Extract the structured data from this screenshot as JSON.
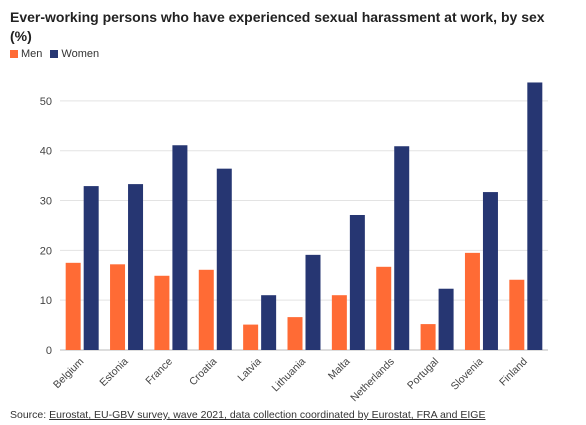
{
  "title": "Ever-working persons who have experienced sexual harassment at work, by sex (%)",
  "source": {
    "prefix": "Source: ",
    "link_text": "Eurostat, EU-GBV survey, wave 2021, data collection coordinated by Eurostat, FRA and EIGE"
  },
  "colors": {
    "men": "#ff6b35",
    "women": "#263672"
  },
  "chart_data": {
    "type": "bar",
    "title": "Ever-working persons who have experienced sexual harassment at work, by sex (%)",
    "categories": [
      "Belgium",
      "Estonia",
      "France",
      "Croatia",
      "Latvia",
      "Lithuania",
      "Malta",
      "Netherlands",
      "Portugal",
      "Slovenia",
      "Finland"
    ],
    "series": [
      {
        "name": "Men",
        "values": [
          17.5,
          17.2,
          14.9,
          16.1,
          5.1,
          6.6,
          11.0,
          16.7,
          5.2,
          19.5,
          14.1
        ]
      },
      {
        "name": "Women",
        "values": [
          32.9,
          33.3,
          41.1,
          36.4,
          11.0,
          19.1,
          27.1,
          40.9,
          12.3,
          31.7,
          53.7
        ]
      }
    ],
    "yticks": [
      0,
      10,
      20,
      30,
      40,
      50
    ],
    "ylim": [
      0,
      55
    ],
    "grid": true,
    "legend_position": "top-left",
    "xlabel": "",
    "ylabel": ""
  }
}
